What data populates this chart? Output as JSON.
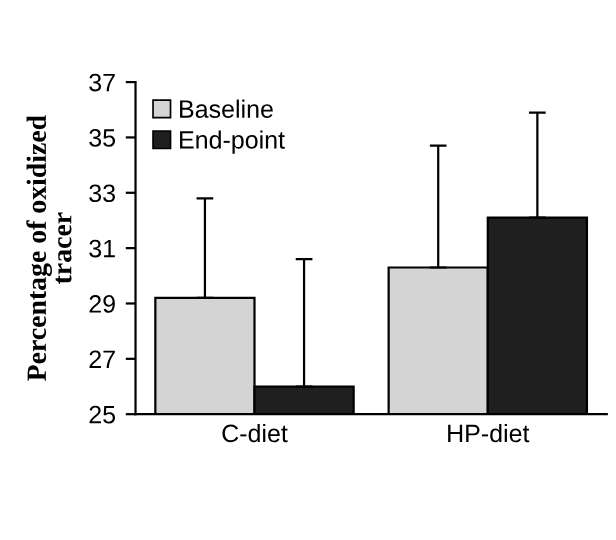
{
  "chart_data": {
    "type": "bar",
    "ylabel": "Percentage of oxidized\ntracer",
    "categories": [
      "C-diet",
      "HP-diet"
    ],
    "series": [
      {
        "name": "Baseline",
        "color": "#d4d4d4",
        "values": [
          29.2,
          30.3
        ],
        "errors": [
          [
            29.2,
            32.8
          ],
          [
            30.3,
            34.7
          ]
        ]
      },
      {
        "name": "End-point",
        "color": "#1f1f1f",
        "values": [
          26.0,
          32.1
        ],
        "errors": [
          [
            26.0,
            30.6
          ],
          [
            32.1,
            35.9
          ]
        ]
      }
    ],
    "ylim": [
      25,
      37
    ],
    "yticks": [
      25,
      27,
      29,
      31,
      33,
      35,
      37
    ],
    "grid": false,
    "legend": "top left"
  }
}
